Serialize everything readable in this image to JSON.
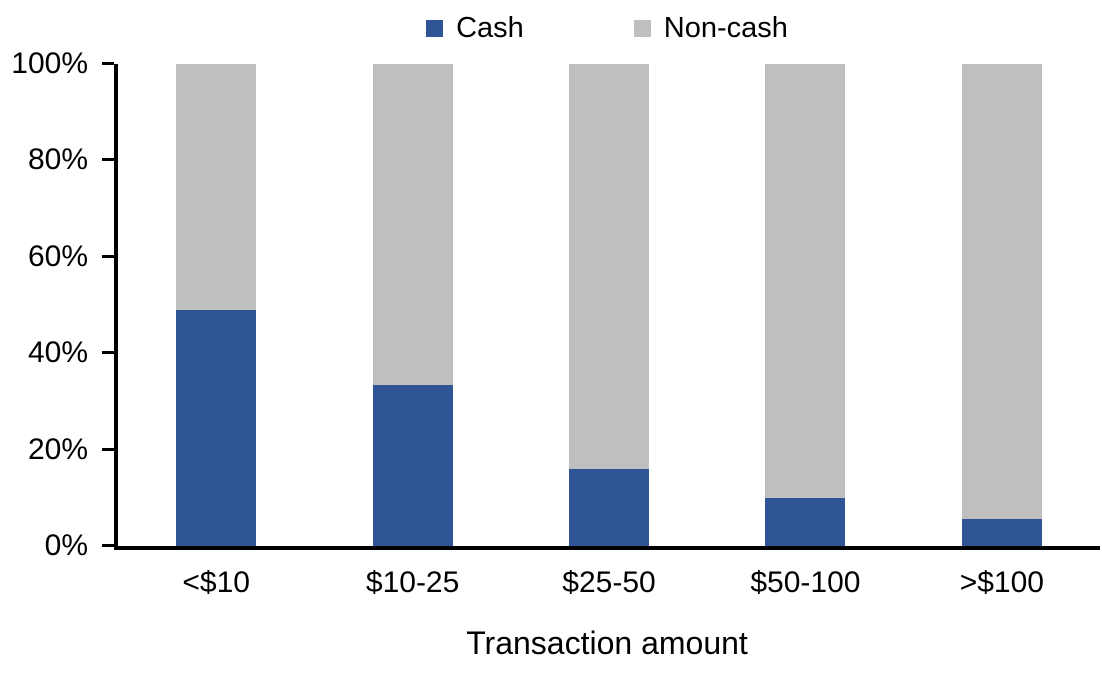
{
  "chart_data": {
    "type": "bar",
    "subtype": "100-percent-stacked-column",
    "title": "",
    "categories": [
      "<$10",
      "$10-25",
      "$25-50",
      "$50-100",
      ">$100"
    ],
    "series": [
      {
        "name": "Cash",
        "color": "#2F5597",
        "values": [
          49,
          33.5,
          16,
          10,
          5.5
        ]
      },
      {
        "name": "Non-cash",
        "color": "#BFBFBF",
        "values": [
          51,
          66.5,
          84,
          90,
          94.5
        ]
      }
    ],
    "xlabel": "Transaction amount",
    "ylabel": "",
    "y_axis": {
      "ticks": [
        "0%",
        "20%",
        "40%",
        "60%",
        "80%",
        "100%"
      ],
      "min": 0,
      "max": 100
    },
    "grid": false,
    "legend": {
      "position": "top-center",
      "labels": [
        "Cash",
        "Non-cash"
      ]
    },
    "axis_color": "#000000",
    "background_color": "#FFFFFF"
  }
}
